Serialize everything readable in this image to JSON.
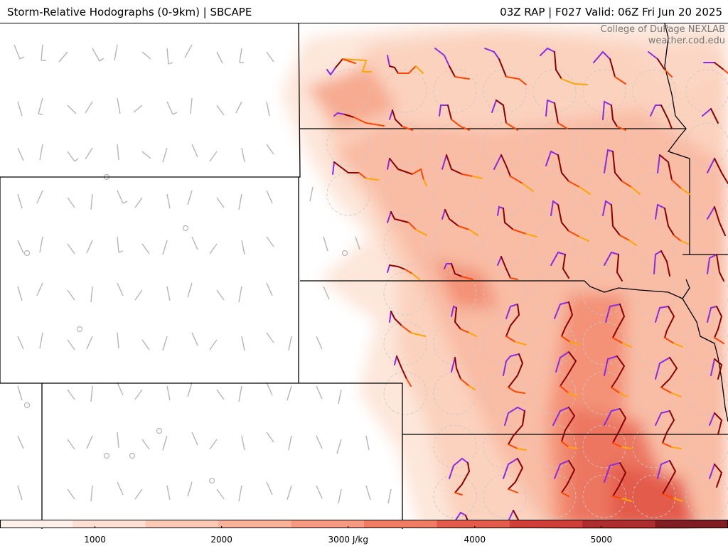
{
  "header": {
    "title": "Storm-Relative Hodographs (0-9km) | SBCAPE",
    "run_info": "03Z RAP | F027 Valid: 06Z Fri Jun 20 2025"
  },
  "credit": {
    "line1": "College of DuPage NEXLAB",
    "line2": "weather.cod.edu"
  },
  "legend": {
    "variable": "SBCAPE",
    "units": "J/kg",
    "colors": [
      "#fff1ea",
      "#fde0d2",
      "#fbc9b4",
      "#f8b29a",
      "#f59a80",
      "#ef7c63",
      "#e35c4b",
      "#cf3f3a",
      "#ad2c2e",
      "#7f1d23"
    ],
    "ticks": [
      {
        "value": 1000,
        "label": "1000"
      },
      {
        "value": 2000,
        "label": "2000"
      },
      {
        "value": 3000,
        "label": "3000 J/kg"
      },
      {
        "value": 4000,
        "label": "4000"
      },
      {
        "value": 5000,
        "label": "5000"
      }
    ]
  },
  "layers": {
    "hodograph_colors": {
      "low": "#8a2be2",
      "mid": "#8b0000",
      "upper": "#ff4500",
      "top": "#ffa500"
    },
    "barb_color": "#b5b5b5",
    "boundary_color": "#000000"
  }
}
